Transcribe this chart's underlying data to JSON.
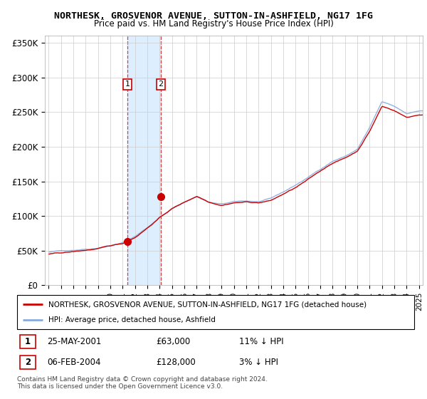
{
  "title": "NORTHESK, GROSVENOR AVENUE, SUTTON-IN-ASHFIELD, NG17 1FG",
  "subtitle": "Price paid vs. HM Land Registry's House Price Index (HPI)",
  "legend_line1": "NORTHESK, GROSVENOR AVENUE, SUTTON-IN-ASHFIELD, NG17 1FG (detached house)",
  "legend_line2": "HPI: Average price, detached house, Ashfield",
  "transaction1_date": "25-MAY-2001",
  "transaction1_price": "£63,000",
  "transaction1_hpi": "11% ↓ HPI",
  "transaction2_date": "06-FEB-2004",
  "transaction2_price": "£128,000",
  "transaction2_hpi": "3% ↓ HPI",
  "footnote": "Contains HM Land Registry data © Crown copyright and database right 2024.\nThis data is licensed under the Open Government Licence v3.0.",
  "ylim": [
    0,
    360000
  ],
  "yticks": [
    0,
    50000,
    100000,
    150000,
    200000,
    250000,
    300000,
    350000
  ],
  "ytick_labels": [
    "£0",
    "£50K",
    "£100K",
    "£150K",
    "£200K",
    "£250K",
    "£300K",
    "£350K"
  ],
  "grid_color": "#cccccc",
  "red_color": "#cc0000",
  "blue_color": "#88aadd",
  "highlight_bg": "#ddeeff",
  "transaction1_x": 2001.38,
  "transaction1_y": 63000,
  "transaction2_x": 2004.09,
  "transaction2_y": 128000,
  "highlight_x_start": 2001.38,
  "highlight_x_end": 2004.09,
  "xlim_start": 1994.7,
  "xlim_end": 2025.3
}
